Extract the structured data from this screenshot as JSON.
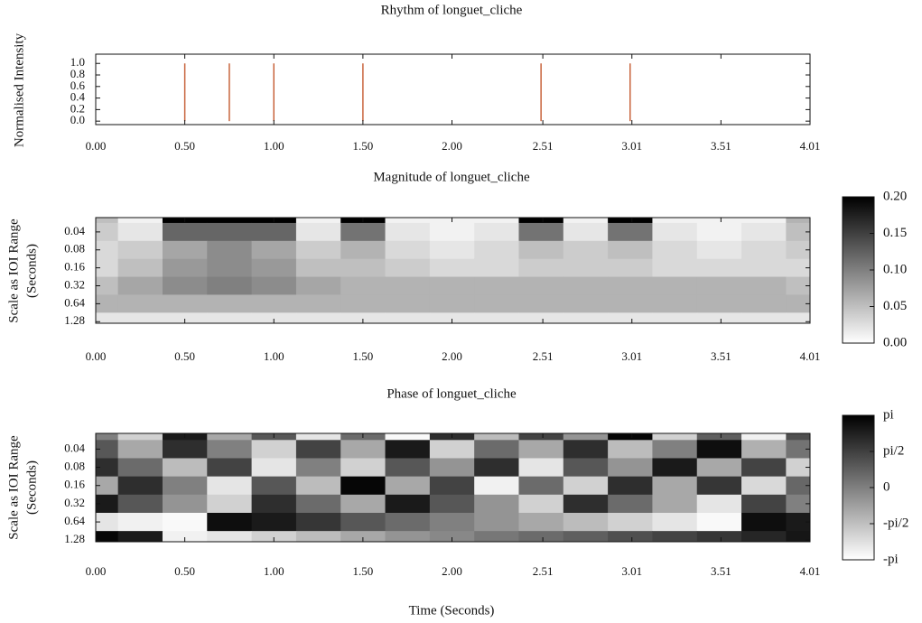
{
  "chart_data": [
    {
      "type": "stem",
      "title": "Rhythm of longuet_cliche",
      "y_label": "Normalised Intensity",
      "x": [
        0.5,
        0.75,
        1.0,
        1.5,
        2.5,
        3.0
      ],
      "values": [
        1.0,
        1.0,
        1.0,
        1.0,
        1.0,
        1.0
      ],
      "color": "#c8643c",
      "xlim": [
        0,
        4.01
      ],
      "xticks": [
        {
          "value": 0,
          "label": "0.00"
        },
        {
          "value": 0.5,
          "label": "0.50"
        },
        {
          "value": 1,
          "label": "1.00"
        },
        {
          "value": 1.5,
          "label": "1.50"
        },
        {
          "value": 2,
          "label": "2.00"
        },
        2.51,
        3.01,
        3.51,
        4.01
      ],
      "ylim": [
        -0.06,
        1.16
      ],
      "yticks": [
        {
          "value": 0,
          "label": "0.0"
        },
        0.2,
        0.4,
        0.6,
        0.8,
        {
          "value": 1,
          "label": "1.0"
        }
      ]
    },
    {
      "type": "heatmap",
      "title": "Magnitude of longuet_cliche",
      "y_label": [
        "Scale as IOI Range",
        "(Seconds)"
      ],
      "x": [
        0,
        0.25,
        0.5,
        0.75,
        1.0,
        1.25,
        1.5,
        1.75,
        2.0,
        2.25,
        2.5,
        2.75,
        3.0,
        3.25,
        3.5,
        3.75,
        4.0
      ],
      "y": [
        0.02,
        0.04,
        0.08,
        0.16,
        0.32,
        0.64,
        1.28
      ],
      "z": [
        [
          0.05,
          0.01,
          0.2,
          0.2,
          0.2,
          0.01,
          0.2,
          0.01,
          0.01,
          0.01,
          0.2,
          0.01,
          0.2,
          0.01,
          0.01,
          0.01,
          0.06
        ],
        [
          0.04,
          0.02,
          0.12,
          0.12,
          0.12,
          0.02,
          0.11,
          0.02,
          0.01,
          0.02,
          0.11,
          0.02,
          0.11,
          0.02,
          0.01,
          0.02,
          0.05
        ],
        [
          0.03,
          0.04,
          0.07,
          0.09,
          0.07,
          0.04,
          0.06,
          0.03,
          0.02,
          0.03,
          0.05,
          0.04,
          0.05,
          0.03,
          0.02,
          0.03,
          0.04
        ],
        [
          0.03,
          0.05,
          0.08,
          0.09,
          0.08,
          0.05,
          0.05,
          0.04,
          0.03,
          0.03,
          0.04,
          0.04,
          0.04,
          0.03,
          0.03,
          0.03,
          0.03
        ],
        [
          0.05,
          0.07,
          0.09,
          0.1,
          0.09,
          0.07,
          0.06,
          0.06,
          0.06,
          0.06,
          0.06,
          0.06,
          0.06,
          0.06,
          0.06,
          0.06,
          0.05
        ],
        [
          0.06,
          0.06,
          0.06,
          0.06,
          0.06,
          0.06,
          0.06,
          0.06,
          0.06,
          0.06,
          0.06,
          0.06,
          0.06,
          0.06,
          0.06,
          0.06,
          0.06
        ],
        [
          0.02,
          0.02,
          0.02,
          0.02,
          0.02,
          0.02,
          0.02,
          0.02,
          0.02,
          0.02,
          0.02,
          0.02,
          0.02,
          0.02,
          0.02,
          0.02,
          0.02
        ]
      ],
      "xlim": [
        0,
        4.01
      ],
      "xticks": [
        {
          "value": 0,
          "label": "0.00"
        },
        {
          "value": 0.5,
          "label": "0.50"
        },
        {
          "value": 1,
          "label": "1.00"
        },
        {
          "value": 1.5,
          "label": "1.50"
        },
        {
          "value": 2,
          "label": "2.00"
        },
        2.51,
        3.01,
        3.51,
        4.01
      ],
      "ylim": [
        0.023,
        1.36
      ],
      "y_log": true,
      "y_inverted": true,
      "yticks": [
        0.04,
        0.08,
        0.16,
        0.32,
        0.64,
        1.28
      ],
      "zlim": [
        0,
        0.2
      ],
      "zticks": [
        {
          "value": 0,
          "label": "0.00"
        },
        0.05,
        {
          "value": 0.1,
          "label": "0.10"
        },
        0.15,
        {
          "value": 0.2,
          "label": "0.20"
        }
      ],
      "colormap": [
        "#ffffff",
        "#000000"
      ]
    },
    {
      "type": "heatmap",
      "title": "Phase of longuet_cliche",
      "y_label": [
        "Scale as IOI Range",
        "(Seconds)"
      ],
      "x_label": "Time (Seconds)",
      "x": [
        0,
        0.25,
        0.5,
        0.75,
        1.0,
        1.25,
        1.5,
        1.75,
        2.0,
        2.25,
        2.5,
        2.75,
        3.0,
        3.25,
        3.5,
        3.75,
        4.0
      ],
      "y": [
        0.02,
        0.04,
        0.08,
        0.16,
        0.32,
        0.64,
        1.28
      ],
      "z": [
        [
          0,
          -2,
          2.5,
          -1,
          1,
          -2.5,
          0.5,
          -3,
          2,
          -1.5,
          1.5,
          -0.5,
          3,
          -2,
          0.8,
          -2.8,
          1.2
        ],
        [
          1,
          -1,
          2,
          0,
          -2,
          1.5,
          -1,
          2.5,
          -2,
          0.5,
          -1,
          2,
          -1.5,
          0,
          2.8,
          -1.2,
          0.3
        ],
        [
          2,
          0.5,
          -1.5,
          1.5,
          -2.5,
          0,
          -2,
          1,
          -0.5,
          2,
          -2.5,
          1,
          -0.5,
          2.5,
          -1,
          1.5,
          -2
        ],
        [
          -1,
          2,
          0,
          -2.5,
          1,
          -1.5,
          3,
          -1,
          1.5,
          -2.8,
          0.5,
          -2,
          2,
          -1,
          1.8,
          -2.2,
          0.6
        ],
        [
          2.5,
          1,
          -0.5,
          -2,
          2,
          0.5,
          -1,
          2.5,
          1,
          -0.5,
          -2,
          2,
          0.5,
          -1,
          -2.5,
          1.5,
          0
        ],
        [
          -2.5,
          -2.8,
          -3,
          2.8,
          2.5,
          1.8,
          1,
          0.5,
          0,
          -0.5,
          -1,
          -1.5,
          -2,
          -2.5,
          -3,
          2.8,
          2.5
        ],
        [
          3,
          2.5,
          -2.8,
          -2.5,
          -2,
          -1.5,
          -1,
          -0.5,
          -0.2,
          0.2,
          0.5,
          0.8,
          1.2,
          1.5,
          1.8,
          2.2,
          2.6
        ]
      ],
      "xlim": [
        0,
        4.01
      ],
      "xticks": [
        {
          "value": 0,
          "label": "0.00"
        },
        {
          "value": 0.5,
          "label": "0.50"
        },
        {
          "value": 1,
          "label": "1.00"
        },
        {
          "value": 1.5,
          "label": "1.50"
        },
        {
          "value": 2,
          "label": "2.00"
        },
        2.51,
        3.01,
        3.51,
        4.01
      ],
      "ylim": [
        0.022,
        1.36
      ],
      "y_log": true,
      "y_inverted": true,
      "yticks": [
        0.04,
        0.08,
        0.16,
        0.32,
        0.64,
        1.28
      ],
      "zlim": [
        -3.14159,
        3.14159
      ],
      "zticks": [
        {
          "value": -3.14159,
          "label": "-pi"
        },
        {
          "value": -1.5708,
          "label": "-pi/2"
        },
        0,
        {
          "value": 1.5708,
          "label": "pi/2"
        },
        {
          "value": 3.14159,
          "label": "pi"
        }
      ],
      "colormap": [
        "#ffffff",
        "#000000"
      ]
    }
  ]
}
